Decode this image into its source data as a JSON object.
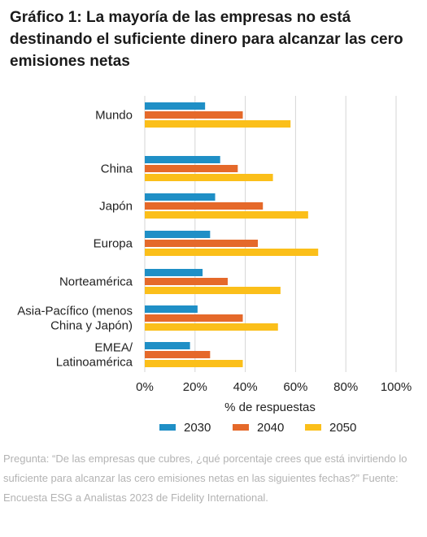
{
  "title": "Gráfico 1: La mayoría de las empresas no está destinando el suficiente dinero para alcanzar las cero emisiones netas",
  "footnote": "Pregunta: “De las empresas que cubres, ¿qué porcentaje crees que está invirtiendo lo suficiente para alcanzar las cero emisiones netas en las siguientes fechas?” Fuente: Encuesta ESG a Analistas 2023 de Fidelity International.",
  "colors": {
    "2030": "#1f8fc6",
    "2040": "#e5692a",
    "2050": "#fbbf1a",
    "grid": "#d6d6d6",
    "text": "#222222"
  },
  "chart_data": {
    "type": "bar",
    "orientation": "horizontal",
    "categories": [
      "Mundo",
      "China",
      "Japón",
      "Europa",
      "Norteamérica",
      "Asia-Pacífico (menos China y Japón)",
      "EMEA/ Latinoamérica"
    ],
    "category_lines": [
      [
        "Mundo"
      ],
      [
        "China"
      ],
      [
        "Japón"
      ],
      [
        "Europa"
      ],
      [
        "Norteamérica"
      ],
      [
        "Asia-Pacífico (menos",
        "China y Japón)"
      ],
      [
        "EMEA/",
        "Latinoamérica"
      ]
    ],
    "series": [
      {
        "name": "2030",
        "values": [
          24,
          30,
          28,
          26,
          23,
          21,
          18
        ]
      },
      {
        "name": "2040",
        "values": [
          39,
          37,
          47,
          45,
          33,
          39,
          26
        ]
      },
      {
        "name": "2050",
        "values": [
          58,
          51,
          65,
          69,
          54,
          53,
          39
        ]
      }
    ],
    "xlim": [
      0,
      100
    ],
    "xticks": [
      "0%",
      "20%",
      "40%",
      "60%",
      "80%",
      "100%"
    ],
    "xlabel": "% de respuestas",
    "ylabel": "",
    "grid": "vertical",
    "legend": "bottom"
  }
}
